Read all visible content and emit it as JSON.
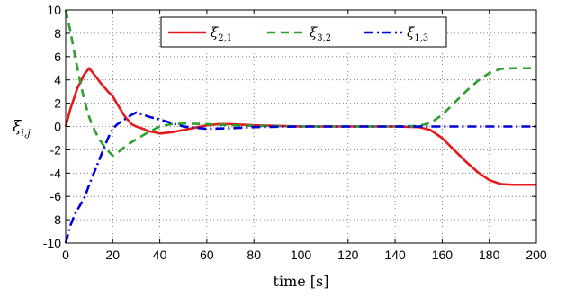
{
  "chart_data": {
    "type": "line",
    "xlabel": "time [s]",
    "ylabel": {
      "main": "ξ",
      "sub": "i,j"
    },
    "xlim": [
      0,
      200
    ],
    "ylim": [
      -10,
      10
    ],
    "xticks": [
      0,
      20,
      40,
      60,
      80,
      100,
      120,
      140,
      160,
      180,
      200
    ],
    "yticks": [
      -10,
      -8,
      -6,
      -4,
      -2,
      0,
      2,
      4,
      6,
      8,
      10
    ],
    "grid": true,
    "legend_position": "top-center",
    "series": [
      {
        "name": {
          "main": "ξ",
          "sub": "2,1"
        },
        "color": "#e41a1c",
        "style": "solid",
        "x": [
          0,
          2,
          5,
          8,
          10,
          12,
          15,
          18,
          20,
          22,
          25,
          28,
          30,
          33,
          35,
          38,
          40,
          45,
          50,
          55,
          60,
          65,
          70,
          75,
          80,
          90,
          100,
          110,
          120,
          130,
          140,
          150,
          155,
          160,
          165,
          170,
          175,
          180,
          185,
          190,
          195,
          200
        ],
        "y": [
          0,
          1.5,
          3.3,
          4.5,
          5.0,
          4.5,
          3.7,
          3.0,
          2.6,
          1.9,
          0.9,
          0.2,
          0.0,
          -0.2,
          -0.4,
          -0.5,
          -0.6,
          -0.5,
          -0.3,
          -0.1,
          0.1,
          0.2,
          0.2,
          0.15,
          0.1,
          0.05,
          0.0,
          0.0,
          0.0,
          0.0,
          0.0,
          -0.05,
          -0.3,
          -1.0,
          -2.0,
          -3.0,
          -3.9,
          -4.6,
          -4.95,
          -5.0,
          -5.0,
          -5.0
        ]
      },
      {
        "name": {
          "main": "ξ",
          "sub": "3,2"
        },
        "color": "#2ca02c",
        "style": "dashed",
        "x": [
          0,
          2,
          4,
          6,
          8,
          10,
          12,
          14,
          16,
          18,
          20,
          23,
          26,
          30,
          35,
          40,
          45,
          50,
          60,
          70,
          80,
          100,
          120,
          140,
          150,
          155,
          160,
          165,
          170,
          175,
          180,
          185,
          190,
          195,
          200
        ],
        "y": [
          10,
          8.2,
          6.0,
          4.0,
          2.2,
          0.8,
          -0.2,
          -1.0,
          -1.6,
          -2.1,
          -2.5,
          -2.1,
          -1.6,
          -1.1,
          -0.5,
          0.0,
          0.2,
          0.25,
          0.2,
          0.1,
          0.05,
          0.0,
          0.0,
          0.0,
          0.05,
          0.3,
          1.0,
          2.0,
          3.0,
          3.9,
          4.6,
          4.95,
          5.0,
          5.0,
          5.0
        ]
      },
      {
        "name": {
          "main": "ξ",
          "sub": "1,3"
        },
        "color": "#0000dd",
        "style": "dashdot",
        "x": [
          0,
          2,
          4,
          6,
          8,
          10,
          12,
          14,
          16,
          18,
          20,
          22,
          25,
          28,
          30,
          33,
          36,
          40,
          45,
          50,
          55,
          60,
          70,
          80,
          100,
          120,
          150,
          180,
          200
        ],
        "y": [
          -10,
          -8.5,
          -7.5,
          -6.8,
          -6.1,
          -5.0,
          -4.0,
          -3.0,
          -2.0,
          -1.0,
          -0.2,
          0.2,
          0.6,
          1.0,
          1.2,
          1.0,
          0.8,
          0.6,
          0.3,
          0.0,
          -0.1,
          -0.2,
          -0.15,
          -0.05,
          0.0,
          0.0,
          0.0,
          0.0,
          0.0
        ]
      }
    ]
  }
}
